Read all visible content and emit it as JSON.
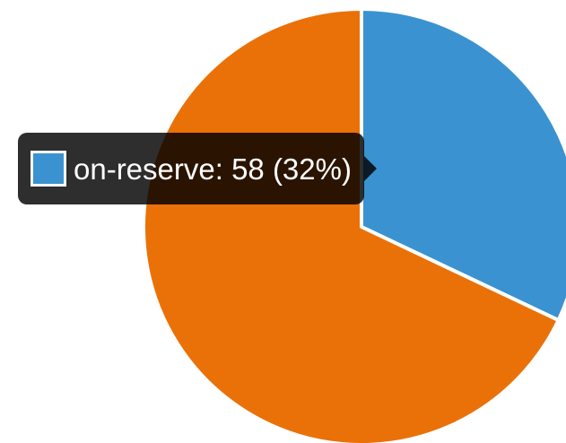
{
  "chart_data": {
    "type": "pie",
    "slices": [
      {
        "label": "on-reserve",
        "value": 58,
        "percent": 32,
        "color": "#3a93d0"
      },
      {
        "label": "",
        "value": 123,
        "percent": 68,
        "color": "#ea7108"
      }
    ],
    "start_angle_degrees": 0,
    "direction": "clockwise",
    "slice_border_color": "#ffffff"
  },
  "tooltip": {
    "text": "on-reserve: 58 (32%)",
    "swatch_color": "#3a93d0"
  }
}
